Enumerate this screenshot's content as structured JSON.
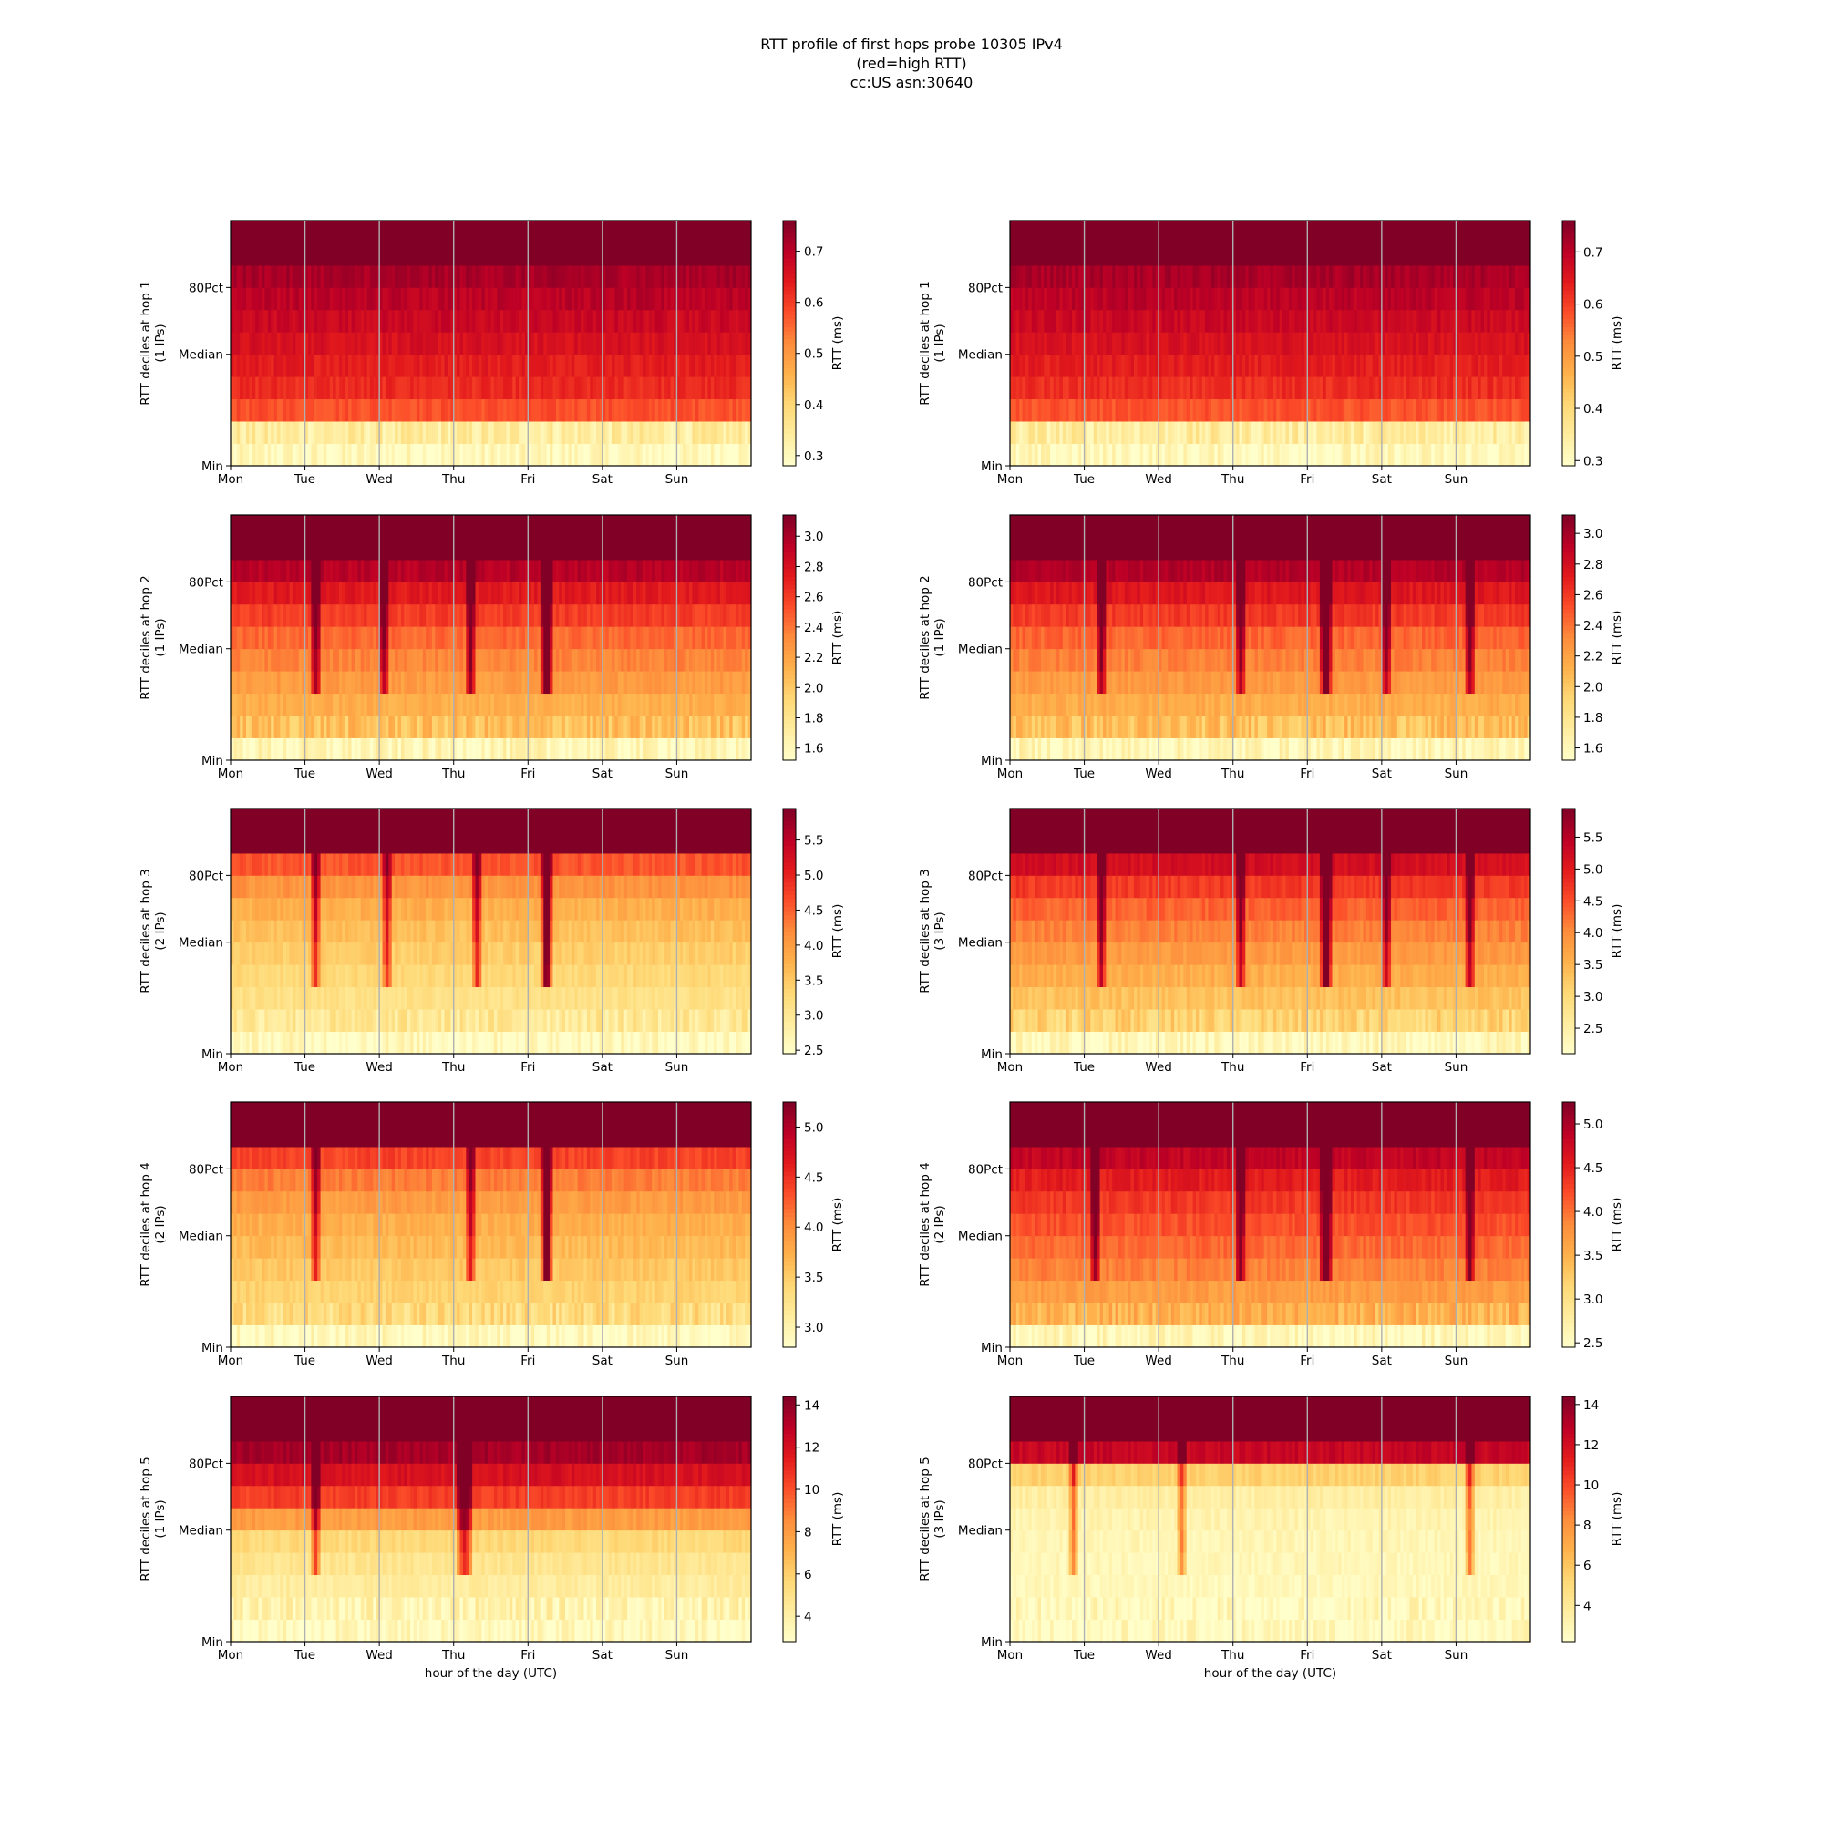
{
  "figure": {
    "title_lines": [
      "RTT profile of first hops probe 10305 IPv4",
      "(red=high RTT)",
      "cc:US asn:30640"
    ],
    "xlabel": "hour of the day (UTC)",
    "colormap": "YlOrRd",
    "colormap_stops": [
      "#ffffcc",
      "#ffeda0",
      "#fed976",
      "#feb24c",
      "#fd8d3c",
      "#fc4e2a",
      "#e31a1c",
      "#bd0026",
      "#800026"
    ],
    "gridline_color": "#b0b0b0"
  },
  "chart_data": [
    {
      "type": "heatmap",
      "hop": 1,
      "column": "left",
      "ylabel": "RTT deciles at hop 1",
      "ylabel2": "(1 IPs)",
      "x_tick_labels": [
        "Mon",
        "Tue",
        "Wed",
        "Thu",
        "Fri",
        "Sat",
        "Sun"
      ],
      "y_tick_labels": [
        "Min",
        "Median",
        "80Pct"
      ],
      "cbar_label": "RTT (ms)",
      "cbar_range": [
        0.28,
        0.76
      ],
      "cbar_ticks": [
        "0.3",
        "0.4",
        "0.5",
        "0.6",
        "0.7"
      ],
      "decile_values": [
        0.3,
        0.34,
        0.58,
        0.62,
        0.64,
        0.66,
        0.68,
        0.7,
        0.72,
        0.8
      ],
      "spikes": []
    },
    {
      "type": "heatmap",
      "hop": 1,
      "column": "right",
      "ylabel": "RTT deciles at hop 1",
      "ylabel2": "(1 IPs)",
      "x_tick_labels": [
        "Mon",
        "Tue",
        "Wed",
        "Thu",
        "Fri",
        "Sat",
        "Sun"
      ],
      "y_tick_labels": [
        "Min",
        "Median",
        "80Pct"
      ],
      "cbar_label": "RTT (ms)",
      "cbar_range": [
        0.29,
        0.76
      ],
      "cbar_ticks": [
        "0.3",
        "0.4",
        "0.5",
        "0.6",
        "0.7"
      ],
      "decile_values": [
        0.31,
        0.35,
        0.58,
        0.62,
        0.64,
        0.66,
        0.68,
        0.7,
        0.72,
        0.8
      ],
      "spikes": []
    },
    {
      "type": "heatmap",
      "hop": 2,
      "column": "left",
      "ylabel": "RTT deciles at hop 2",
      "ylabel2": "(1 IPs)",
      "x_tick_labels": [
        "Mon",
        "Tue",
        "Wed",
        "Thu",
        "Fri",
        "Sat",
        "Sun"
      ],
      "y_tick_labels": [
        "Min",
        "Median",
        "80Pct"
      ],
      "cbar_label": "RTT (ms)",
      "cbar_range": [
        1.52,
        3.14
      ],
      "cbar_ticks": [
        "1.6",
        "1.8",
        "2.0",
        "2.2",
        "2.4",
        "2.6",
        "2.8",
        "3.0"
      ],
      "decile_values": [
        1.62,
        2.05,
        2.15,
        2.25,
        2.35,
        2.45,
        2.6,
        2.75,
        2.95,
        3.3
      ],
      "spikes": [
        0.16,
        0.29,
        0.46,
        0.6,
        0.61
      ]
    },
    {
      "type": "heatmap",
      "hop": 2,
      "column": "right",
      "ylabel": "RTT deciles at hop 2",
      "ylabel2": "(1 IPs)",
      "x_tick_labels": [
        "Mon",
        "Tue",
        "Wed",
        "Thu",
        "Fri",
        "Sat",
        "Sun"
      ],
      "y_tick_labels": [
        "Min",
        "Median",
        "80Pct"
      ],
      "cbar_label": "RTT (ms)",
      "cbar_range": [
        1.52,
        3.12
      ],
      "cbar_ticks": [
        "1.6",
        "1.8",
        "2.0",
        "2.2",
        "2.4",
        "2.6",
        "2.8",
        "3.0"
      ],
      "decile_values": [
        1.62,
        2.05,
        2.15,
        2.25,
        2.35,
        2.45,
        2.6,
        2.75,
        2.95,
        3.3
      ],
      "spikes": [
        0.17,
        0.44,
        0.6,
        0.61,
        0.72,
        0.88
      ]
    },
    {
      "type": "heatmap",
      "hop": 3,
      "column": "left",
      "ylabel": "RTT deciles at hop 3",
      "ylabel2": "(2 IPs)",
      "x_tick_labels": [
        "Mon",
        "Tue",
        "Wed",
        "Thu",
        "Fri",
        "Sat",
        "Sun"
      ],
      "y_tick_labels": [
        "Min",
        "Median",
        "80Pct"
      ],
      "cbar_label": "RTT (ms)",
      "cbar_range": [
        2.45,
        5.95
      ],
      "cbar_ticks": [
        "2.5",
        "3.0",
        "3.5",
        "4.0",
        "4.5",
        "5.0",
        "5.5"
      ],
      "decile_values": [
        2.6,
        3.0,
        3.15,
        3.3,
        3.45,
        3.6,
        3.8,
        4.1,
        4.6,
        6.2
      ],
      "spikes": [
        0.16,
        0.3,
        0.47,
        0.6,
        0.61
      ]
    },
    {
      "type": "heatmap",
      "hop": 3,
      "column": "right",
      "ylabel": "RTT deciles at hop 3",
      "ylabel2": "(3 IPs)",
      "x_tick_labels": [
        "Mon",
        "Tue",
        "Wed",
        "Thu",
        "Fri",
        "Sat",
        "Sun"
      ],
      "y_tick_labels": [
        "Min",
        "Median",
        "80Pct"
      ],
      "cbar_label": "RTT (ms)",
      "cbar_range": [
        2.1,
        5.95
      ],
      "cbar_ticks": [
        "2.5",
        "3.0",
        "3.5",
        "4.0",
        "4.5",
        "5.0",
        "5.5"
      ],
      "decile_values": [
        2.3,
        3.1,
        3.35,
        3.6,
        3.85,
        4.1,
        4.35,
        4.7,
        5.2,
        6.2
      ],
      "spikes": [
        0.17,
        0.44,
        0.6,
        0.61,
        0.72,
        0.88
      ]
    },
    {
      "type": "heatmap",
      "hop": 4,
      "column": "left",
      "ylabel": "RTT deciles at hop 4",
      "ylabel2": "(2 IPs)",
      "x_tick_labels": [
        "Mon",
        "Tue",
        "Wed",
        "Thu",
        "Fri",
        "Sat",
        "Sun"
      ],
      "y_tick_labels": [
        "Min",
        "Median",
        "80Pct"
      ],
      "cbar_label": "RTT (ms)",
      "cbar_range": [
        2.8,
        5.25
      ],
      "cbar_ticks": [
        "3.0",
        "3.5",
        "4.0",
        "4.5",
        "5.0"
      ],
      "decile_values": [
        2.9,
        3.35,
        3.45,
        3.55,
        3.65,
        3.75,
        3.9,
        4.1,
        4.4,
        5.4
      ],
      "spikes": [
        0.16,
        0.46,
        0.6,
        0.61
      ]
    },
    {
      "type": "heatmap",
      "hop": 4,
      "column": "right",
      "ylabel": "RTT deciles at hop 4",
      "ylabel2": "(2 IPs)",
      "x_tick_labels": [
        "Mon",
        "Tue",
        "Wed",
        "Thu",
        "Fri",
        "Sat",
        "Sun"
      ],
      "y_tick_labels": [
        "Min",
        "Median",
        "80Pct"
      ],
      "cbar_label": "RTT (ms)",
      "cbar_range": [
        2.45,
        5.25
      ],
      "cbar_ticks": [
        "2.5",
        "3.0",
        "3.5",
        "4.0",
        "4.5",
        "5.0"
      ],
      "decile_values": [
        2.6,
        3.5,
        3.7,
        3.9,
        4.05,
        4.2,
        4.35,
        4.55,
        4.85,
        5.4
      ],
      "spikes": [
        0.16,
        0.44,
        0.6,
        0.61,
        0.88
      ]
    },
    {
      "type": "heatmap",
      "hop": 5,
      "column": "left",
      "ylabel": "RTT deciles at hop 5",
      "ylabel2": "(1 IPs)",
      "x_tick_labels": [
        "Mon",
        "Tue",
        "Wed",
        "Thu",
        "Fri",
        "Sat",
        "Sun"
      ],
      "y_tick_labels": [
        "Min",
        "Median",
        "80Pct"
      ],
      "cbar_label": "RTT (ms)",
      "cbar_range": [
        2.8,
        14.4
      ],
      "cbar_ticks": [
        "4",
        "6",
        "8",
        "10",
        "12",
        "14"
      ],
      "decile_values": [
        3.2,
        3.8,
        4.3,
        4.8,
        5.6,
        8.0,
        10.5,
        12.0,
        13.5,
        15.0
      ],
      "spikes": [
        0.16,
        0.44,
        0.45
      ]
    },
    {
      "type": "heatmap",
      "hop": 5,
      "column": "right",
      "ylabel": "RTT deciles at hop 5",
      "ylabel2": "(3 IPs)",
      "x_tick_labels": [
        "Mon",
        "Tue",
        "Wed",
        "Thu",
        "Fri",
        "Sat",
        "Sun"
      ],
      "y_tick_labels": [
        "Min",
        "Median",
        "80Pct"
      ],
      "cbar_label": "RTT (ms)",
      "cbar_range": [
        2.2,
        14.4
      ],
      "cbar_ticks": [
        "4",
        "6",
        "8",
        "10",
        "12",
        "14"
      ],
      "decile_values": [
        2.6,
        2.7,
        2.8,
        2.9,
        3.0,
        3.2,
        3.6,
        5.5,
        12.5,
        15.0
      ],
      "spikes": [
        0.12,
        0.33,
        0.88
      ]
    }
  ]
}
